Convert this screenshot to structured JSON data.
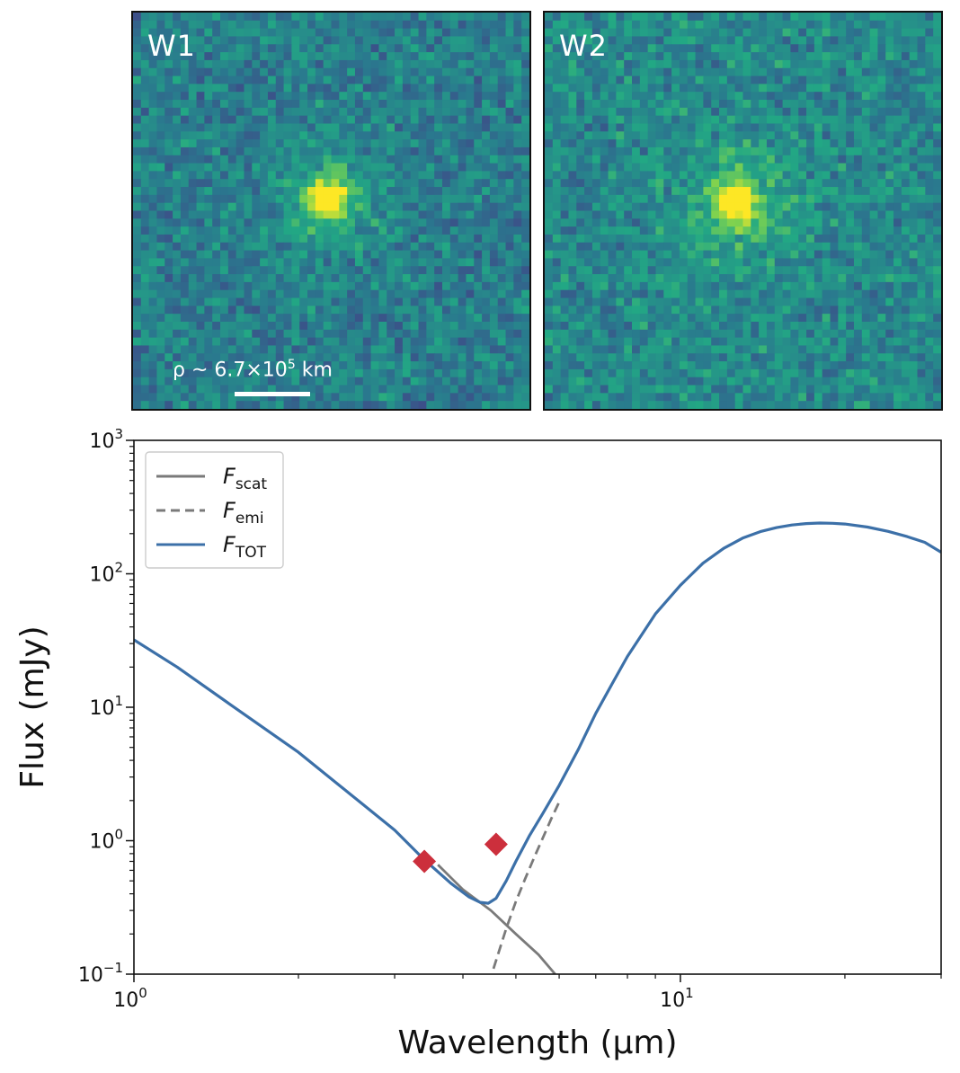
{
  "images": {
    "left": {
      "label": "W1",
      "scale_text": {
        "prefix": "ρ ~ 6.7×10",
        "superscript": "5",
        "suffix": " km"
      }
    },
    "right": {
      "label": "W2"
    }
  },
  "chart_data": {
    "type": "line",
    "xscale": "log",
    "yscale": "log",
    "xlim": [
      1,
      30
    ],
    "ylim": [
      0.1,
      1000
    ],
    "xlabel": "Wavelength (μm)",
    "ylabel": "Flux (mJy)",
    "x_ticks": [
      {
        "value": 1,
        "base": "10",
        "exp": "0"
      },
      {
        "value": 10,
        "base": "10",
        "exp": "1"
      }
    ],
    "y_ticks": [
      {
        "value": 0.1,
        "base": "10",
        "exp": "−1"
      },
      {
        "value": 1,
        "base": "10",
        "exp": "0"
      },
      {
        "value": 10,
        "base": "10",
        "exp": "1"
      },
      {
        "value": 100,
        "base": "10",
        "exp": "2"
      },
      {
        "value": 1000,
        "base": "10",
        "exp": "3"
      }
    ],
    "legend": {
      "position": "top-left",
      "entries": [
        {
          "main": "F",
          "sub": "scat",
          "style": "solid",
          "color": "#7a7a7a"
        },
        {
          "main": "F",
          "sub": "emi",
          "style": "dashed",
          "color": "#7a7a7a"
        },
        {
          "main": "F",
          "sub": "TOT",
          "style": "solid",
          "color": "#3c70a8"
        }
      ]
    },
    "series": [
      {
        "key": "scat",
        "color": "#7a7a7a",
        "style": "solid",
        "x": [
          3.6,
          4.0,
          4.5,
          5.0,
          5.5,
          5.9
        ],
        "y": [
          0.66,
          0.43,
          0.3,
          0.2,
          0.14,
          0.1
        ]
      },
      {
        "key": "emi",
        "color": "#7a7a7a",
        "style": "dashed",
        "x": [
          4.55,
          4.8,
          5.0,
          5.2,
          5.4,
          5.6,
          5.8,
          6.0
        ],
        "y": [
          0.11,
          0.22,
          0.35,
          0.52,
          0.75,
          1.05,
          1.45,
          1.95
        ]
      },
      {
        "key": "tot",
        "color": "#3c70a8",
        "style": "solid",
        "x": [
          1.0,
          1.2,
          1.5,
          2.0,
          2.5,
          3.0,
          3.4,
          3.8,
          4.1,
          4.3,
          4.45,
          4.6,
          4.8,
          5.0,
          5.3,
          5.6,
          6.0,
          6.5,
          7.0,
          7.5,
          8.0,
          9.0,
          10.0,
          11.0,
          12.0,
          13.0,
          14.0,
          15.0,
          16.0,
          17.0,
          18.0,
          19.0,
          20.0,
          22.0,
          24.0,
          26.0,
          28.0,
          30.0
        ],
        "y": [
          32,
          20,
          10.5,
          4.6,
          2.2,
          1.2,
          0.72,
          0.48,
          0.38,
          0.345,
          0.34,
          0.37,
          0.5,
          0.7,
          1.1,
          1.6,
          2.6,
          4.8,
          9.0,
          15.0,
          24.0,
          50.0,
          82.0,
          120.0,
          155.0,
          185.0,
          207.0,
          222.0,
          232.0,
          238.0,
          240.0,
          239.0,
          236.0,
          224.0,
          208.0,
          190.0,
          172.0,
          145.0
        ]
      }
    ],
    "points": {
      "color": "#cc2f3c",
      "marker": "diamond",
      "x": [
        3.4,
        4.6
      ],
      "y": [
        0.7,
        0.94
      ]
    }
  }
}
